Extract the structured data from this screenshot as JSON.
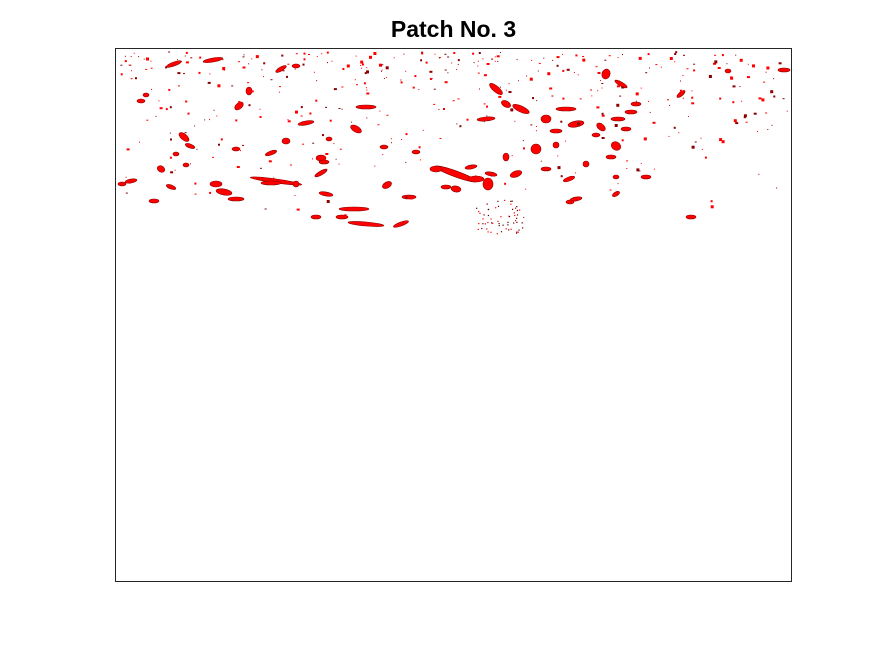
{
  "figure": {
    "title": "Patch No. 3"
  },
  "colors": {
    "fill": "#ff0000",
    "edge": "#8b0000",
    "axes_border": "#262626",
    "background": "#ffffff"
  }
}
